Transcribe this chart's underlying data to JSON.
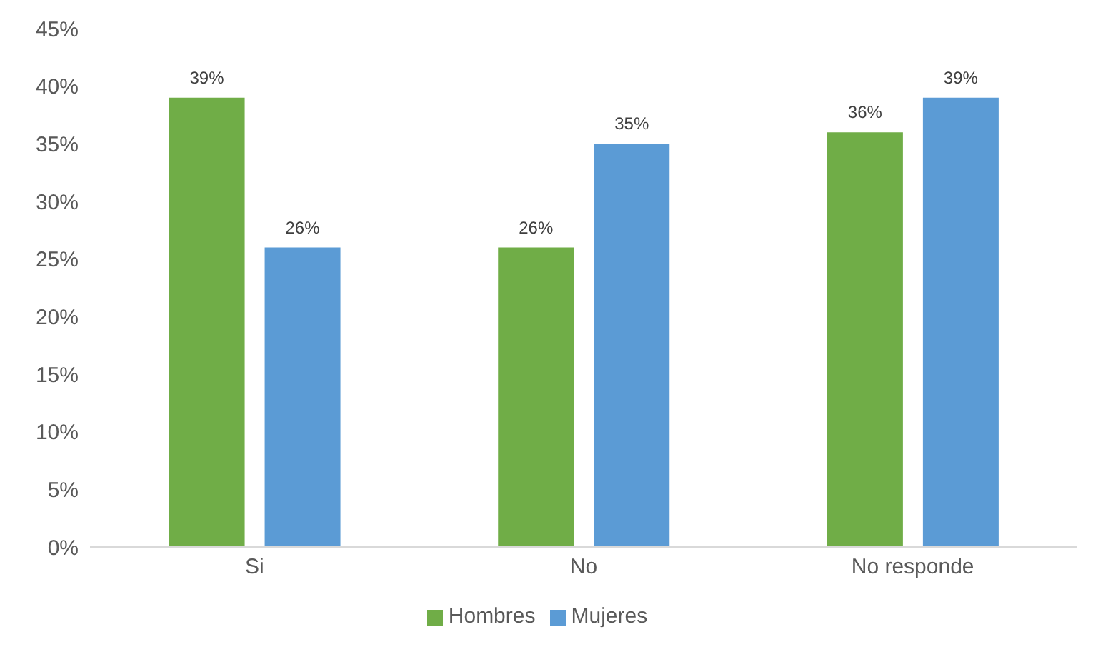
{
  "chart_data": {
    "type": "bar",
    "categories": [
      "Si",
      "No",
      "No responde"
    ],
    "series": [
      {
        "name": "Hombres",
        "color": "#70ad47",
        "values": [
          39,
          26,
          36
        ],
        "value_labels": [
          "39%",
          "26%",
          "36%"
        ]
      },
      {
        "name": "Mujeres",
        "color": "#5b9bd5",
        "values": [
          26,
          35,
          39
        ],
        "value_labels": [
          "26%",
          "35%",
          "39%"
        ]
      }
    ],
    "ylim": [
      0,
      45
    ],
    "yticks": [
      {
        "value": 0,
        "label": "0%"
      },
      {
        "value": 5,
        "label": "5%"
      },
      {
        "value": 10,
        "label": "10%"
      },
      {
        "value": 15,
        "label": "15%"
      },
      {
        "value": 20,
        "label": "20%"
      },
      {
        "value": 25,
        "label": "25%"
      },
      {
        "value": 30,
        "label": "30%"
      },
      {
        "value": 35,
        "label": "35%"
      },
      {
        "value": 40,
        "label": "40%"
      },
      {
        "value": 45,
        "label": "45%"
      }
    ],
    "grid": false,
    "legend": "bottom"
  }
}
